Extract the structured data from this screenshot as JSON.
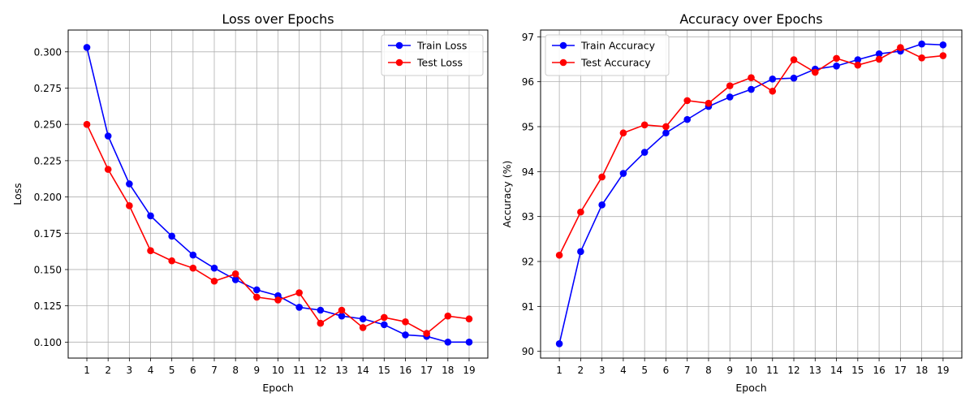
{
  "chart_data": [
    {
      "type": "line",
      "title": "Loss over Epochs",
      "xlabel": "Epoch",
      "ylabel": "Loss",
      "x": [
        1,
        2,
        3,
        4,
        5,
        6,
        7,
        8,
        9,
        10,
        11,
        12,
        13,
        14,
        15,
        16,
        17,
        18,
        19
      ],
      "yticks": [
        0.1,
        0.125,
        0.15,
        0.175,
        0.2,
        0.225,
        0.25,
        0.275,
        0.3
      ],
      "ylim": [
        0.089,
        0.315
      ],
      "grid": true,
      "legend": "top-right",
      "series": [
        {
          "name": "Train Loss",
          "color": "#0000ff",
          "values": [
            0.303,
            0.242,
            0.209,
            0.187,
            0.173,
            0.16,
            0.151,
            0.143,
            0.136,
            0.132,
            0.124,
            0.122,
            0.118,
            0.116,
            0.112,
            0.105,
            0.104,
            0.1,
            0.1
          ]
        },
        {
          "name": "Test Loss",
          "color": "#ff0000",
          "values": [
            0.25,
            0.219,
            0.194,
            0.163,
            0.156,
            0.151,
            0.142,
            0.147,
            0.131,
            0.129,
            0.134,
            0.113,
            0.122,
            0.11,
            0.117,
            0.114,
            0.106,
            0.118,
            0.116
          ]
        }
      ]
    },
    {
      "type": "line",
      "title": "Accuracy over Epochs",
      "xlabel": "Epoch",
      "ylabel": "Accuracy (%)",
      "x": [
        1,
        2,
        3,
        4,
        5,
        6,
        7,
        8,
        9,
        10,
        11,
        12,
        13,
        14,
        15,
        16,
        17,
        18,
        19
      ],
      "yticks": [
        90,
        91,
        92,
        93,
        94,
        95,
        96,
        97
      ],
      "ylim": [
        89.85,
        97.15
      ],
      "grid": true,
      "legend": "top-left",
      "series": [
        {
          "name": "Train Accuracy",
          "color": "#0000ff",
          "values": [
            90.17,
            92.22,
            93.26,
            93.96,
            94.43,
            94.86,
            95.16,
            95.45,
            95.66,
            95.83,
            96.06,
            96.08,
            96.28,
            96.35,
            96.49,
            96.62,
            96.68,
            96.84,
            96.82
          ]
        },
        {
          "name": "Test Accuracy",
          "color": "#ff0000",
          "values": [
            92.14,
            93.1,
            93.88,
            94.86,
            95.04,
            95.0,
            95.58,
            95.52,
            95.91,
            96.09,
            95.79,
            96.49,
            96.21,
            96.52,
            96.37,
            96.5,
            96.76,
            96.53,
            96.58
          ]
        }
      ]
    }
  ]
}
